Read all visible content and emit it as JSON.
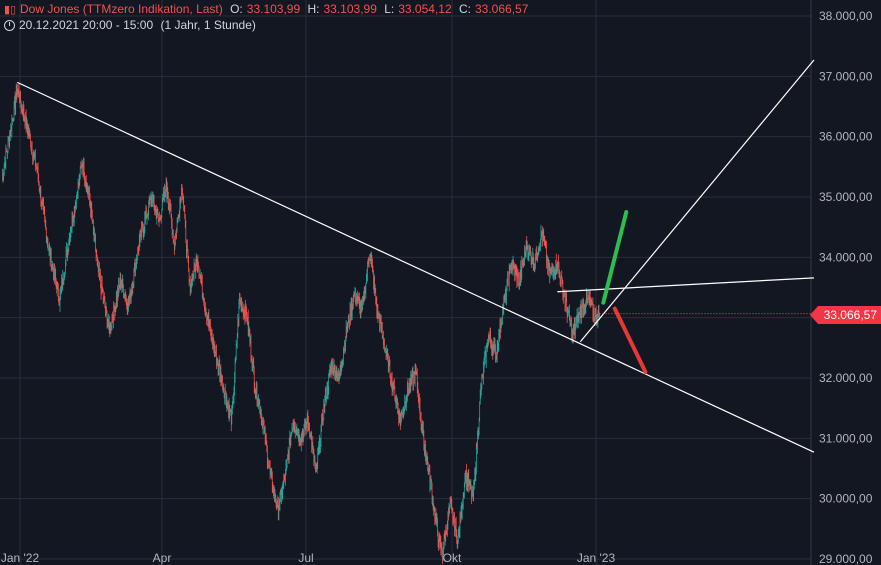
{
  "header": {
    "symbol": "Dow Jones (TTMzero Indikation, Last)",
    "o_label": "O:",
    "o_value": "33.103,99",
    "h_label": "H:",
    "h_value": "33.103,99",
    "l_label": "L:",
    "l_value": "33.054,12",
    "c_label": "C:",
    "c_value": "33.066,57",
    "range": "20.12.2021 20:00 - 15:00",
    "timeframe": "(1 Jahr, 1 Stunde)",
    "icon": "candlestick-chart-icon",
    "clock_icon": "clock-icon"
  },
  "price_tag": "33.066,57",
  "colors": {
    "background": "#131722",
    "grid": "#2a2e39",
    "up": "#26a69a",
    "down": "#ef5350",
    "trendline": "#ffffff",
    "arrow_up": "#2ebd4f",
    "arrow_down": "#e53935",
    "axis_text": "#b2b5be"
  },
  "chart_data": {
    "type": "candlestick",
    "y_ticks": [
      "29.000,00",
      "30.000,00",
      "31.000,00",
      "32.000,00",
      "33.000,00",
      "34.000,00",
      "35.000,00",
      "36.000,00",
      "37.000,00",
      "38.000,00"
    ],
    "x_ticks": [
      "Jan '22",
      "Apr",
      "Jul",
      "Okt",
      "Jan '23"
    ],
    "ylim": [
      29000,
      38000
    ],
    "grid": true,
    "last_price": 33066.57,
    "keypoints": [
      {
        "d": 0,
        "v": 35300
      },
      {
        "d": 3,
        "v": 36400
      },
      {
        "d": 4,
        "v": 36800
      },
      {
        "d": 6,
        "v": 36300
      },
      {
        "d": 9,
        "v": 35500
      },
      {
        "d": 12,
        "v": 34200
      },
      {
        "d": 15,
        "v": 33300
      },
      {
        "d": 18,
        "v": 34500
      },
      {
        "d": 21,
        "v": 35600
      },
      {
        "d": 23,
        "v": 34900
      },
      {
        "d": 25,
        "v": 33800
      },
      {
        "d": 28,
        "v": 32800
      },
      {
        "d": 31,
        "v": 33600
      },
      {
        "d": 33,
        "v": 33200
      },
      {
        "d": 36,
        "v": 34300
      },
      {
        "d": 39,
        "v": 35000
      },
      {
        "d": 41,
        "v": 34600
      },
      {
        "d": 43,
        "v": 35200
      },
      {
        "d": 45,
        "v": 34200
      },
      {
        "d": 47,
        "v": 35200
      },
      {
        "d": 49,
        "v": 33500
      },
      {
        "d": 51,
        "v": 34000
      },
      {
        "d": 53,
        "v": 33200
      },
      {
        "d": 55,
        "v": 32600
      },
      {
        "d": 58,
        "v": 31800
      },
      {
        "d": 60,
        "v": 31300
      },
      {
        "d": 62,
        "v": 33300
      },
      {
        "d": 64,
        "v": 33000
      },
      {
        "d": 66,
        "v": 31900
      },
      {
        "d": 68,
        "v": 31300
      },
      {
        "d": 70,
        "v": 30400
      },
      {
        "d": 72,
        "v": 29800
      },
      {
        "d": 74,
        "v": 30400
      },
      {
        "d": 76,
        "v": 31300
      },
      {
        "d": 78,
        "v": 31000
      },
      {
        "d": 80,
        "v": 31300
      },
      {
        "d": 82,
        "v": 30400
      },
      {
        "d": 84,
        "v": 31500
      },
      {
        "d": 86,
        "v": 32200
      },
      {
        "d": 88,
        "v": 32000
      },
      {
        "d": 90,
        "v": 32800
      },
      {
        "d": 92,
        "v": 33400
      },
      {
        "d": 94,
        "v": 33100
      },
      {
        "d": 96,
        "v": 34100
      },
      {
        "d": 98,
        "v": 33100
      },
      {
        "d": 100,
        "v": 32500
      },
      {
        "d": 102,
        "v": 31900
      },
      {
        "d": 104,
        "v": 31300
      },
      {
        "d": 106,
        "v": 31800
      },
      {
        "d": 108,
        "v": 32100
      },
      {
        "d": 110,
        "v": 31000
      },
      {
        "d": 112,
        "v": 30200
      },
      {
        "d": 114,
        "v": 29300
      },
      {
        "d": 115,
        "v": 29100
      },
      {
        "d": 117,
        "v": 29900
      },
      {
        "d": 119,
        "v": 29300
      },
      {
        "d": 121,
        "v": 30400
      },
      {
        "d": 123,
        "v": 30000
      },
      {
        "d": 125,
        "v": 31800
      },
      {
        "d": 127,
        "v": 32700
      },
      {
        "d": 129,
        "v": 32400
      },
      {
        "d": 131,
        "v": 33200
      },
      {
        "d": 133,
        "v": 33900
      },
      {
        "d": 135,
        "v": 33600
      },
      {
        "d": 137,
        "v": 34200
      },
      {
        "d": 139,
        "v": 33900
      },
      {
        "d": 141,
        "v": 34400
      },
      {
        "d": 143,
        "v": 33700
      },
      {
        "d": 145,
        "v": 33900
      },
      {
        "d": 147,
        "v": 33300
      },
      {
        "d": 149,
        "v": 32700
      },
      {
        "d": 151,
        "v": 33100
      },
      {
        "d": 153,
        "v": 33300
      },
      {
        "d": 155,
        "v": 33000
      },
      {
        "d": 156,
        "v": 33066
      }
    ],
    "trendlines": [
      {
        "name": "downtrend-line",
        "from": {
          "d": 4,
          "v": 36900
        },
        "to": {
          "d": 212,
          "v": 30770
        }
      },
      {
        "name": "resistance-line",
        "from": {
          "d": 145,
          "v": 33430
        },
        "to": {
          "d": 212,
          "v": 33660
        }
      },
      {
        "name": "support-line",
        "from": {
          "d": 151,
          "v": 32600
        },
        "to": {
          "d": 212,
          "v": 37270
        }
      }
    ],
    "arrows": [
      {
        "name": "bullish-arrow",
        "color_key": "arrow_up",
        "from": {
          "d": 157,
          "v": 33250
        },
        "to": {
          "d": 163,
          "v": 34750
        }
      },
      {
        "name": "bearish-arrow",
        "color_key": "arrow_down",
        "from": {
          "d": 160,
          "v": 33150
        },
        "to": {
          "d": 168,
          "v": 32100
        }
      }
    ]
  }
}
